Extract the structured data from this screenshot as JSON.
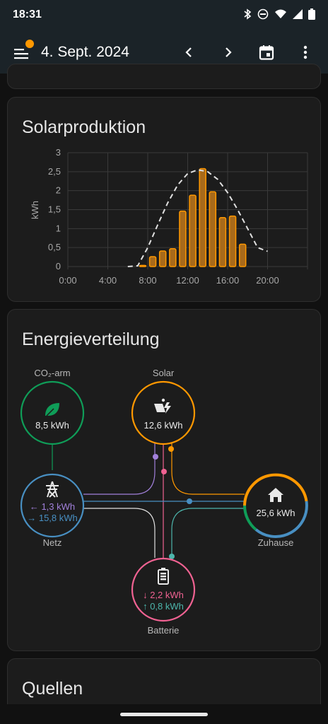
{
  "status_bar": {
    "time": "18:31",
    "icons": [
      "bluetooth-icon",
      "do-not-disturb-icon",
      "wifi-icon",
      "signal-icon",
      "battery-icon"
    ]
  },
  "app_bar": {
    "date": "4. Sept. 2024",
    "badge_color": "#ff9800",
    "actions": [
      "chevron-left-icon",
      "chevron-right-icon",
      "calendar-icon",
      "more-vert-icon"
    ]
  },
  "solar_card": {
    "title": "Solarproduktion",
    "chart_data": {
      "type": "bar",
      "ylabel": "kWh",
      "xlabel": "",
      "ylim": [
        0,
        3
      ],
      "y_ticks": [
        "0",
        "0,5",
        "1",
        "1,5",
        "2",
        "2,5",
        "3"
      ],
      "x_ticks": [
        "0:00",
        "4:00",
        "8:00",
        "12:00",
        "16:00",
        "20:00"
      ],
      "categories": [
        "7:00",
        "8:00",
        "9:00",
        "10:00",
        "11:00",
        "12:00",
        "13:00",
        "14:00",
        "15:00",
        "16:00",
        "17:00"
      ],
      "series": [
        {
          "values": [
            0.03,
            0.26,
            0.41,
            0.47,
            1.46,
            1.88,
            2.58,
            1.97,
            1.29,
            1.33,
            0.59
          ],
          "type": "bar",
          "color": "#ff9800"
        },
        {
          "type": "line",
          "style": "dashed",
          "color": "#e0e0e0",
          "x": [
            6.0,
            7.0,
            8.0,
            9.0,
            10.0,
            11.0,
            12.0,
            13.0,
            14.0,
            15.0,
            16.0,
            17.0,
            18.0,
            19.0,
            20.0
          ],
          "values": [
            0.0,
            0.02,
            0.5,
            1.1,
            1.68,
            2.15,
            2.45,
            2.55,
            2.5,
            2.3,
            1.95,
            1.5,
            1.0,
            0.5,
            0.4
          ]
        }
      ]
    }
  },
  "energy_card": {
    "title": "Energieverteilung",
    "nodes": {
      "co2": {
        "label": "CO₂-arm",
        "value": "8,5 kWh",
        "color": "#0f9d58",
        "icon": "leaf-icon"
      },
      "solar": {
        "label": "Solar",
        "value": "12,6 kWh",
        "color": "#ff9800",
        "icon": "solar-power-icon"
      },
      "grid": {
        "label": "Netz",
        "value_in": "← 1,3 kWh",
        "value_out": "→ 15,8 kWh",
        "color": "#488fc2",
        "icon": "transmission-tower-icon"
      },
      "home": {
        "label": "Zuhause",
        "value": "25,6 kWh",
        "icon": "home-icon"
      },
      "battery": {
        "label": "Batterie",
        "value_in": "↓ 2,2 kWh",
        "value_out": "↑ 0,8 kWh",
        "color": "#f06292",
        "icon": "battery-icon"
      }
    },
    "colors": {
      "grid_export": "#a280db",
      "battery_in": "#f06292",
      "battery_out": "#4db6ac",
      "solar": "#ff9800",
      "grid": "#488fc2",
      "co2": "#0f9d58"
    }
  },
  "sources_card": {
    "title": "Quellen"
  }
}
